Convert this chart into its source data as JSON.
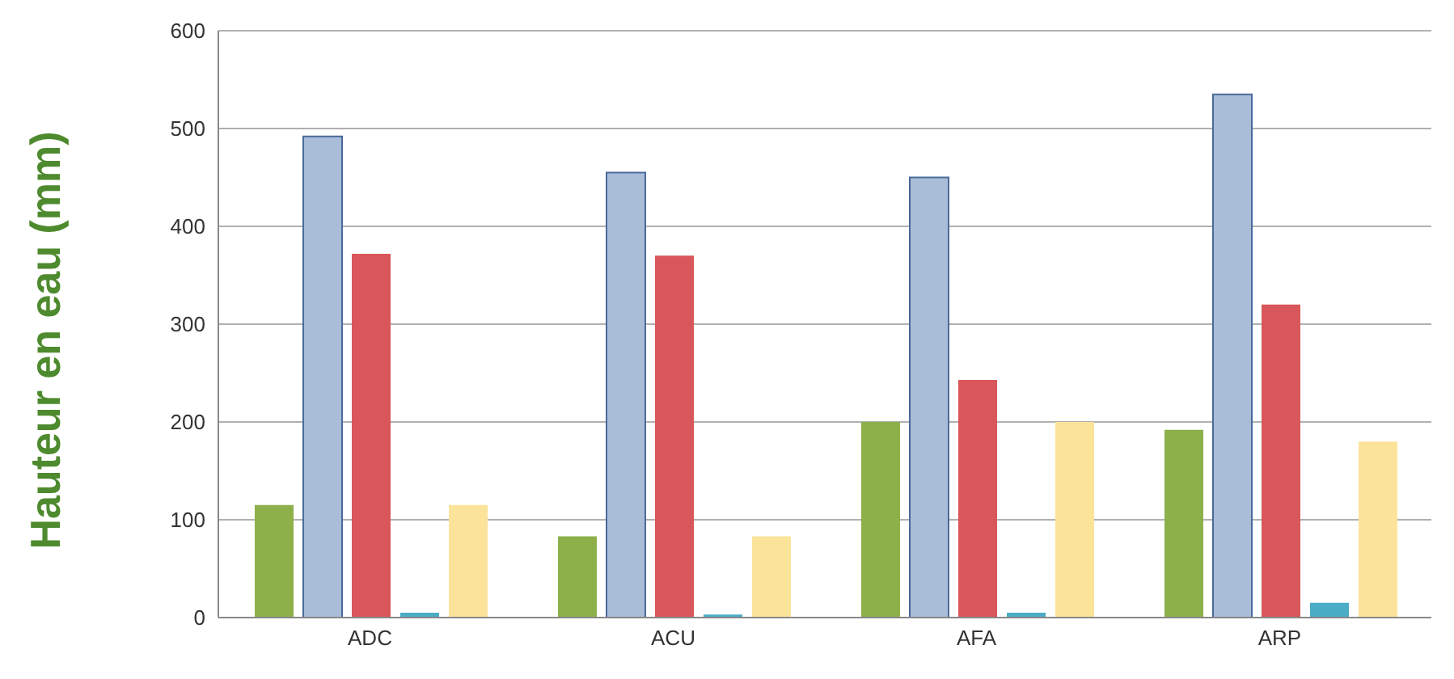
{
  "chart_data": {
    "type": "bar",
    "ylabel": "Hauteur en eau (mm)",
    "categories": [
      "ADC",
      "ACU",
      "AFA",
      "ARP"
    ],
    "series": [
      {
        "color": "#8db04a",
        "values": [
          115,
          83,
          200,
          192
        ]
      },
      {
        "color": "#a9bcd8",
        "values": [
          492,
          455,
          450,
          535
        ]
      },
      {
        "color": "#d9575a",
        "values": [
          372,
          370,
          243,
          320
        ]
      },
      {
        "color": "#4bacc6",
        "values": [
          5,
          3,
          5,
          15
        ]
      },
      {
        "color": "#fbe39a",
        "values": [
          115,
          83,
          200,
          180
        ]
      }
    ],
    "ylim": [
      0,
      600
    ],
    "yticks": [
      0,
      100,
      200,
      300,
      400,
      500,
      600
    ],
    "grid": "y"
  }
}
